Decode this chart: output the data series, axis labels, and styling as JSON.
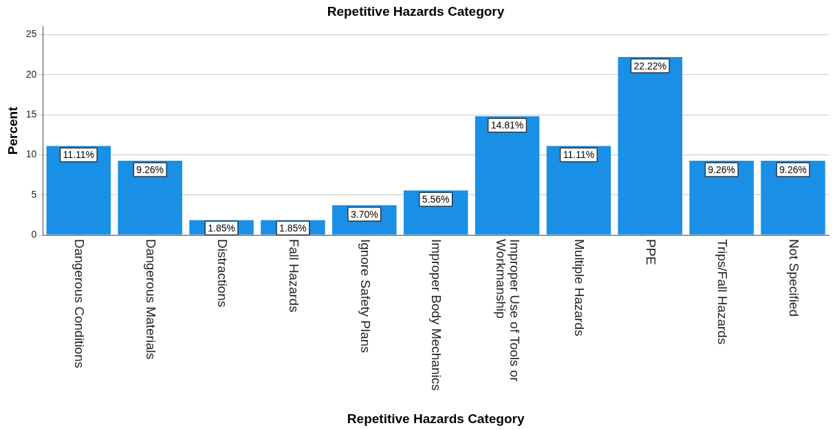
{
  "chart_data": {
    "type": "bar",
    "title": "Repetitive Hazards Category",
    "xlabel": "Repetitive Hazards Category",
    "ylabel": "Percent",
    "categories": [
      "Dangerous Conditions",
      "Dangerous Materials",
      "Distractions",
      "Fall Hazards",
      "Ignore Safety Plans",
      "Improper Body Mechanics",
      "Improper Use of Tools or Workmanship",
      "Multiple Hazards",
      "PPE",
      "Trips/Fall Hazards",
      "Not Specified"
    ],
    "values": [
      11.11,
      9.26,
      1.85,
      1.85,
      3.7,
      5.56,
      14.81,
      11.11,
      22.22,
      9.26,
      9.26
    ],
    "value_labels": [
      "11.11%",
      "9.26%",
      "1.85%",
      "1.85%",
      "3.70%",
      "5.56%",
      "14.81%",
      "11.11%",
      "22.22%",
      "9.26%",
      "9.26%"
    ],
    "color": "#1a8fe6",
    "ylim": [
      0,
      26
    ],
    "yticks": [
      0,
      5,
      10,
      15,
      20,
      25
    ],
    "grid": "y",
    "legend": false
  }
}
